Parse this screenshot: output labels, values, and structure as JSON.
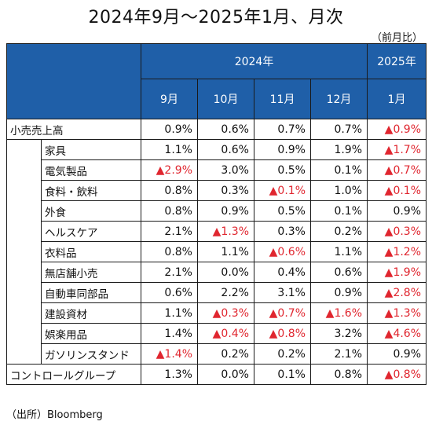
{
  "title": "2024年9月～2025年1月、月次",
  "note": "（前月比）",
  "source": "（出所）Bloomberg",
  "colors": {
    "header_bg": "#1f5fa8",
    "negative": "#e0262f"
  },
  "header": {
    "year_2024": "2024年",
    "year_2025": "2025年",
    "months": [
      "9月",
      "10月",
      "11月",
      "12月",
      "1月"
    ]
  },
  "rows": [
    {
      "label": "小売売上高",
      "sub": false,
      "values": [
        "0.9%",
        "0.6%",
        "0.7%",
        "0.7%",
        "▲0.9%"
      ]
    },
    {
      "label": "家具",
      "sub": true,
      "values": [
        "1.1%",
        "0.6%",
        "0.9%",
        "1.9%",
        "▲1.7%"
      ]
    },
    {
      "label": "電気製品",
      "sub": true,
      "values": [
        "▲2.9%",
        "3.0%",
        "0.5%",
        "0.1%",
        "▲0.7%"
      ]
    },
    {
      "label": "食料・飲料",
      "sub": true,
      "values": [
        "0.8%",
        "0.3%",
        "▲0.1%",
        "1.0%",
        "▲0.1%"
      ]
    },
    {
      "label": "外食",
      "sub": true,
      "values": [
        "0.8%",
        "0.9%",
        "0.5%",
        "0.1%",
        "0.9%"
      ]
    },
    {
      "label": "ヘルスケア",
      "sub": true,
      "values": [
        "2.1%",
        "▲1.3%",
        "0.3%",
        "0.2%",
        "▲0.3%"
      ]
    },
    {
      "label": "衣料品",
      "sub": true,
      "values": [
        "0.8%",
        "1.1%",
        "▲0.6%",
        "1.1%",
        "▲1.2%"
      ]
    },
    {
      "label": "無店舗小売",
      "sub": true,
      "values": [
        "2.1%",
        "0.0%",
        "0.4%",
        "0.6%",
        "▲1.9%"
      ]
    },
    {
      "label": "自動車同部品",
      "sub": true,
      "values": [
        "0.6%",
        "2.2%",
        "3.1%",
        "0.9%",
        "▲2.8%"
      ]
    },
    {
      "label": "建設資材",
      "sub": true,
      "values": [
        "1.1%",
        "▲0.3%",
        "▲0.7%",
        "▲1.6%",
        "▲1.3%"
      ]
    },
    {
      "label": "娯楽用品",
      "sub": true,
      "values": [
        "1.4%",
        "▲0.4%",
        "▲0.8%",
        "3.2%",
        "▲4.6%"
      ]
    },
    {
      "label": "ガソリンスタンド",
      "sub": true,
      "values": [
        "▲1.4%",
        "0.2%",
        "0.2%",
        "2.1%",
        "0.9%"
      ]
    },
    {
      "label": "コントロールグループ",
      "sub": false,
      "values": [
        "1.3%",
        "0.0%",
        "0.1%",
        "0.8%",
        "▲0.8%"
      ]
    }
  ]
}
